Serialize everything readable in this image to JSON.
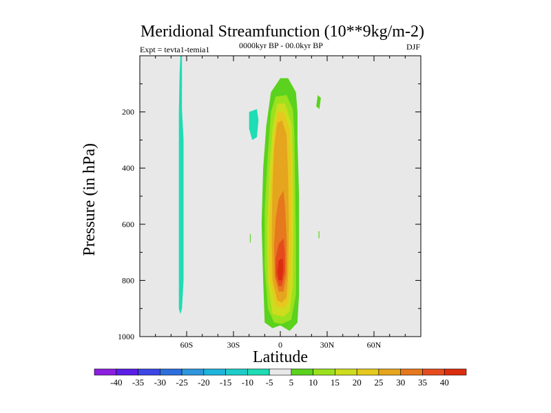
{
  "chart_data": {
    "type": "contour",
    "title": "Meridional Streamfunction (10**9kg/m-2)",
    "subtitle_left": "Expt = tevta1-temia1",
    "subtitle_center": "0000kyr BP - 00.0kyr BP",
    "subtitle_right": "DJF",
    "xlabel": "Latitude",
    "ylabel": "Pressure (in hPa)",
    "xlim": [
      -90,
      90
    ],
    "ylim": [
      1000,
      0
    ],
    "xticks": [
      {
        "value": -60,
        "label": "60S"
      },
      {
        "value": -30,
        "label": "30S"
      },
      {
        "value": 0,
        "label": "0"
      },
      {
        "value": 30,
        "label": "30N"
      },
      {
        "value": 60,
        "label": "60N"
      }
    ],
    "yticks": [
      {
        "value": 200,
        "label": "200"
      },
      {
        "value": 400,
        "label": "400"
      },
      {
        "value": 600,
        "label": "600"
      },
      {
        "value": 800,
        "label": "800"
      },
      {
        "value": 1000,
        "label": "1000"
      }
    ],
    "colorbar": {
      "labels": [
        "-40",
        "-35",
        "-30",
        "-25",
        "-20",
        "-15",
        "-10",
        "-5",
        "5",
        "10",
        "15",
        "20",
        "25",
        "30",
        "35",
        "40"
      ],
      "colors": [
        "#8c1ee0",
        "#5a1ee6",
        "#3c46e6",
        "#2d6edc",
        "#2d96dc",
        "#1eb4dc",
        "#1ecdc8",
        "#1edcb4",
        "#e8e8e8",
        "#5ad21e",
        "#9be11e",
        "#cddc1e",
        "#e6c81e",
        "#e6a51e",
        "#e6781e",
        "#e64b1e",
        "#dc2d0f"
      ]
    },
    "regions": [
      {
        "name": "southern-negative-cell",
        "level": "-10 to -5",
        "color": "#1edcb4",
        "points": [
          [
            -64,
            0
          ],
          [
            -63,
            0
          ],
          [
            -63,
            190
          ],
          [
            -62,
            300
          ],
          [
            -62,
            600
          ],
          [
            -62,
            800
          ],
          [
            -63,
            900
          ],
          [
            -64,
            920
          ],
          [
            -65,
            900
          ],
          [
            -65,
            600
          ],
          [
            -65,
            200
          ],
          [
            -64.5,
            60
          ]
        ]
      },
      {
        "name": "subtropical-negative-patch",
        "level": "-10 to -5",
        "color": "#1edcb4",
        "points": [
          [
            -20,
            200
          ],
          [
            -15,
            190
          ],
          [
            -14,
            230
          ],
          [
            -15,
            290
          ],
          [
            -18,
            300
          ],
          [
            -20,
            260
          ]
        ]
      },
      {
        "name": "hadley-cell-5",
        "level": "5 to 10",
        "color": "#5ad21e",
        "points": [
          [
            0,
            960
          ],
          [
            6,
            980
          ],
          [
            11,
            950
          ],
          [
            12,
            850
          ],
          [
            12,
            700
          ],
          [
            12,
            500
          ],
          [
            11,
            300
          ],
          [
            11,
            200
          ],
          [
            10,
            130
          ],
          [
            5,
            80
          ],
          [
            0,
            80
          ],
          [
            -6,
            130
          ],
          [
            -9,
            250
          ],
          [
            -11,
            400
          ],
          [
            -12,
            600
          ],
          [
            -11,
            800
          ],
          [
            -10,
            950
          ],
          [
            -5,
            970
          ]
        ]
      },
      {
        "name": "hadley-cell-5-north-patch",
        "level": "5 to 10",
        "color": "#5ad21e",
        "points": [
          [
            24,
            140
          ],
          [
            26,
            150
          ],
          [
            25,
            190
          ],
          [
            23,
            180
          ]
        ]
      },
      {
        "name": "hadley-cell-10",
        "level": "10 to 15",
        "color": "#9be11e",
        "points": [
          [
            1,
            955
          ],
          [
            7,
            940
          ],
          [
            10,
            850
          ],
          [
            10,
            650
          ],
          [
            9.5,
            450
          ],
          [
            9,
            280
          ],
          [
            8,
            190
          ],
          [
            4,
            140
          ],
          [
            -3,
            145
          ],
          [
            -6,
            200
          ],
          [
            -8,
            350
          ],
          [
            -10,
            550
          ],
          [
            -10,
            750
          ],
          [
            -8,
            900
          ],
          [
            -4,
            950
          ]
        ]
      },
      {
        "name": "hadley-cell-15",
        "level": "15 to 20",
        "color": "#cddc1e",
        "points": [
          [
            2,
            930
          ],
          [
            6,
            910
          ],
          [
            8,
            820
          ],
          [
            8.5,
            600
          ],
          [
            8,
            400
          ],
          [
            7.5,
            250
          ],
          [
            3,
            170
          ],
          [
            -2,
            170
          ],
          [
            -5,
            260
          ],
          [
            -7,
            420
          ],
          [
            -8.5,
            620
          ],
          [
            -8,
            800
          ],
          [
            -5,
            920
          ]
        ]
      },
      {
        "name": "hadley-cell-20",
        "level": "20 to 25",
        "color": "#e6c81e",
        "points": [
          [
            2,
            900
          ],
          [
            5,
            880
          ],
          [
            6.5,
            790
          ],
          [
            7,
            600
          ],
          [
            7,
            420
          ],
          [
            6,
            260
          ],
          [
            2,
            200
          ],
          [
            -2,
            200
          ],
          [
            -4,
            290
          ],
          [
            -6,
            450
          ],
          [
            -7,
            630
          ],
          [
            -6.5,
            800
          ],
          [
            -3,
            890
          ]
        ]
      },
      {
        "name": "hadley-cell-25",
        "level": "25 to 30",
        "color": "#e6a51e",
        "points": [
          [
            1,
            880
          ],
          [
            4,
            860
          ],
          [
            5,
            780
          ],
          [
            5.5,
            600
          ],
          [
            5,
            430
          ],
          [
            4,
            280
          ],
          [
            1,
            230
          ],
          [
            -2,
            240
          ],
          [
            -4,
            330
          ],
          [
            -5,
            470
          ],
          [
            -5.5,
            640
          ],
          [
            -5,
            800
          ],
          [
            -2,
            870
          ]
        ]
      },
      {
        "name": "hadley-cell-30",
        "level": "30 to 35",
        "color": "#e6781e",
        "points": [
          [
            2,
            840
          ],
          [
            4,
            780
          ],
          [
            4,
            650
          ],
          [
            3,
            530
          ],
          [
            2,
            480
          ],
          [
            -1,
            510
          ],
          [
            -3,
            580
          ],
          [
            -4,
            680
          ],
          [
            -3.5,
            790
          ],
          [
            -1,
            840
          ]
        ]
      },
      {
        "name": "hadley-cell-35",
        "level": "35 to 40",
        "color": "#e64b1e",
        "points": [
          [
            1,
            820
          ],
          [
            3,
            770
          ],
          [
            3,
            700
          ],
          [
            2,
            650
          ],
          [
            -1,
            670
          ],
          [
            -3,
            720
          ],
          [
            -3,
            780
          ],
          [
            -1,
            820
          ]
        ]
      },
      {
        "name": "hadley-cell-40",
        "level": "> 40",
        "color": "#dc2d0f",
        "points": [
          [
            1,
            800
          ],
          [
            2,
            760
          ],
          [
            1.5,
            720
          ],
          [
            -1,
            730
          ],
          [
            -2,
            770
          ],
          [
            -1,
            800
          ]
        ]
      },
      {
        "name": "cell-tick-left",
        "level": "5 to 10",
        "color": "#5ad21e",
        "points": [
          [
            -19.5,
            635
          ],
          [
            -19,
            635
          ],
          [
            -19,
            665
          ],
          [
            -19.5,
            665
          ]
        ]
      },
      {
        "name": "cell-tick-right",
        "level": "5 to 10",
        "color": "#5ad21e",
        "points": [
          [
            24.5,
            625
          ],
          [
            25,
            625
          ],
          [
            25,
            650
          ],
          [
            24.5,
            650
          ]
        ]
      }
    ]
  }
}
